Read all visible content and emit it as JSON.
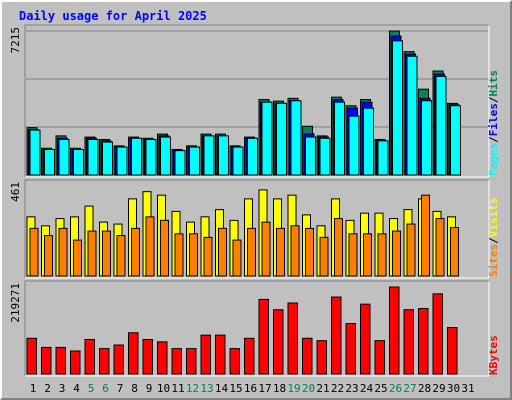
{
  "title": "Daily usage for April 2025",
  "colors": {
    "background": "#c0c0c0",
    "plot": "#c0c0c0",
    "title": "#0000ff",
    "hits": "#00805c",
    "files": "#0000ff",
    "pages": "#00ffff",
    "visits": "#ffff00",
    "sites": "#ff8000",
    "kbytes": "#ff0000",
    "weekend_label": "#00805c",
    "weekday_label": "#000000",
    "separator": "#000000"
  },
  "chart_data": [
    {
      "type": "bar",
      "panel": "hits-files-pages",
      "title": "Daily usage for April 2025",
      "ylabel_parts": [
        "Pages",
        "Files",
        "Hits"
      ],
      "separator": "/",
      "ymax_label": "7215",
      "ylim": [
        0,
        7215
      ],
      "categories": [
        "1",
        "2",
        "3",
        "4",
        "5",
        "6",
        "7",
        "8",
        "9",
        "10",
        "11",
        "12",
        "13",
        "14",
        "15",
        "16",
        "17",
        "18",
        "19",
        "20",
        "21",
        "22",
        "23",
        "24",
        "25",
        "26",
        "27",
        "28",
        "29",
        "30",
        "31"
      ],
      "weekend_days": [
        5,
        6,
        12,
        13,
        19,
        20,
        26,
        27
      ],
      "grid": true,
      "series": [
        {
          "name": "Hits",
          "color": "#00805c",
          "values": [
            2370,
            1340,
            1960,
            1340,
            1900,
            1780,
            1460,
            1900,
            1840,
            2050,
            1280,
            1460,
            2050,
            2050,
            1460,
            1900,
            3780,
            3700,
            3840,
            2440,
            1960,
            3900,
            3470,
            3780,
            1780,
            7215,
            6180,
            4300,
            5210,
            3590,
            0
          ]
        },
        {
          "name": "Files",
          "color": "#0000ff",
          "values": [
            2270,
            1280,
            1840,
            1280,
            1840,
            1710,
            1400,
            1840,
            1780,
            1960,
            1220,
            1400,
            1960,
            1960,
            1400,
            1840,
            3650,
            3590,
            3720,
            2060,
            1900,
            3780,
            3350,
            3650,
            1710,
            6960,
            6060,
            3840,
            5060,
            3520,
            0
          ]
        },
        {
          "name": "Pages",
          "color": "#00ffff",
          "values": [
            2250,
            1280,
            1780,
            1280,
            1780,
            1650,
            1400,
            1840,
            1780,
            1900,
            1220,
            1400,
            1960,
            1960,
            1400,
            1840,
            3650,
            3590,
            3720,
            1900,
            1840,
            3650,
            2950,
            3350,
            1710,
            6720,
            5950,
            3720,
            4940,
            3470,
            0
          ]
        }
      ]
    },
    {
      "type": "bar",
      "panel": "sites-visits",
      "ylabel_parts": [
        "Sites",
        "Visits"
      ],
      "separator": "/",
      "ymax_label": "461",
      "ylim": [
        0,
        461
      ],
      "categories": [
        "1",
        "2",
        "3",
        "4",
        "5",
        "6",
        "7",
        "8",
        "9",
        "10",
        "11",
        "12",
        "13",
        "14",
        "15",
        "16",
        "17",
        "18",
        "19",
        "20",
        "21",
        "22",
        "23",
        "24",
        "25",
        "26",
        "27",
        "28",
        "29",
        "30",
        "31"
      ],
      "series": [
        {
          "name": "Visits",
          "color": "#ffff00",
          "values": [
            303,
            257,
            294,
            303,
            358,
            276,
            266,
            395,
            432,
            414,
            331,
            276,
            303,
            340,
            285,
            395,
            441,
            395,
            414,
            313,
            257,
            395,
            285,
            322,
            322,
            294,
            340,
            395,
            331,
            303,
            0
          ]
        },
        {
          "name": "Sites",
          "color": "#ff8000",
          "values": [
            244,
            207,
            244,
            184,
            230,
            230,
            207,
            244,
            303,
            285,
            216,
            216,
            198,
            244,
            184,
            244,
            276,
            244,
            257,
            244,
            198,
            294,
            216,
            216,
            216,
            230,
            266,
            414,
            294,
            248,
            0
          ]
        }
      ]
    },
    {
      "type": "bar",
      "panel": "kbytes",
      "ylabel_parts": [
        "KBytes"
      ],
      "ymax_label": "219271",
      "ylim": [
        0,
        219271
      ],
      "categories": [
        "1",
        "2",
        "3",
        "4",
        "5",
        "6",
        "7",
        "8",
        "9",
        "10",
        "11",
        "12",
        "13",
        "14",
        "15",
        "16",
        "17",
        "18",
        "19",
        "20",
        "21",
        "22",
        "23",
        "24",
        "25",
        "26",
        "27",
        "28",
        "29",
        "30",
        "31"
      ],
      "series": [
        {
          "name": "KBytes",
          "color": "#ff0000",
          "values": [
            90000,
            67000,
            67000,
            58000,
            87000,
            64000,
            73000,
            104000,
            87000,
            81000,
            64000,
            64000,
            98000,
            98000,
            64000,
            90000,
            188000,
            162000,
            179000,
            90000,
            84000,
            194000,
            127000,
            176000,
            84000,
            219271,
            162000,
            165000,
            202000,
            117000,
            0
          ]
        }
      ]
    }
  ]
}
